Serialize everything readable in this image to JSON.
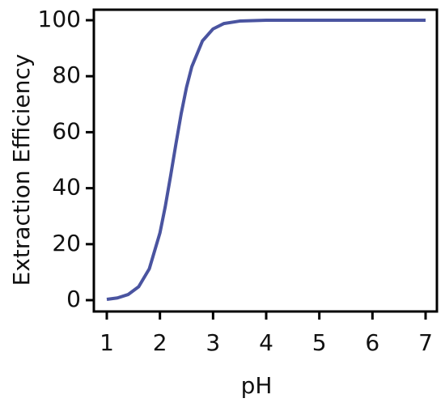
{
  "chart_data": {
    "type": "line",
    "x_label": "pH",
    "y_label": "Extraction Efficiency",
    "x": [
      1.0,
      1.2,
      1.4,
      1.6,
      1.8,
      2.0,
      2.1,
      2.2,
      2.3,
      2.4,
      2.5,
      2.6,
      2.8,
      3.0,
      3.2,
      3.5,
      4.0,
      5.0,
      6.0,
      7.0
    ],
    "series": [
      {
        "color": "#4a54a0",
        "values": [
          0.3,
          0.8,
          2.0,
          4.8,
          11.2,
          24.0,
          33.4,
          44.3,
          55.7,
          66.6,
          76.0,
          83.4,
          92.6,
          96.9,
          98.8,
          99.7,
          100,
          100,
          100,
          100
        ]
      }
    ],
    "xlim": [
      1,
      7
    ],
    "xticks": [
      1,
      2,
      3,
      4,
      5,
      6,
      7
    ],
    "ylim": [
      0,
      100
    ],
    "yticks": [
      0,
      20,
      40,
      60,
      80,
      100
    ]
  }
}
